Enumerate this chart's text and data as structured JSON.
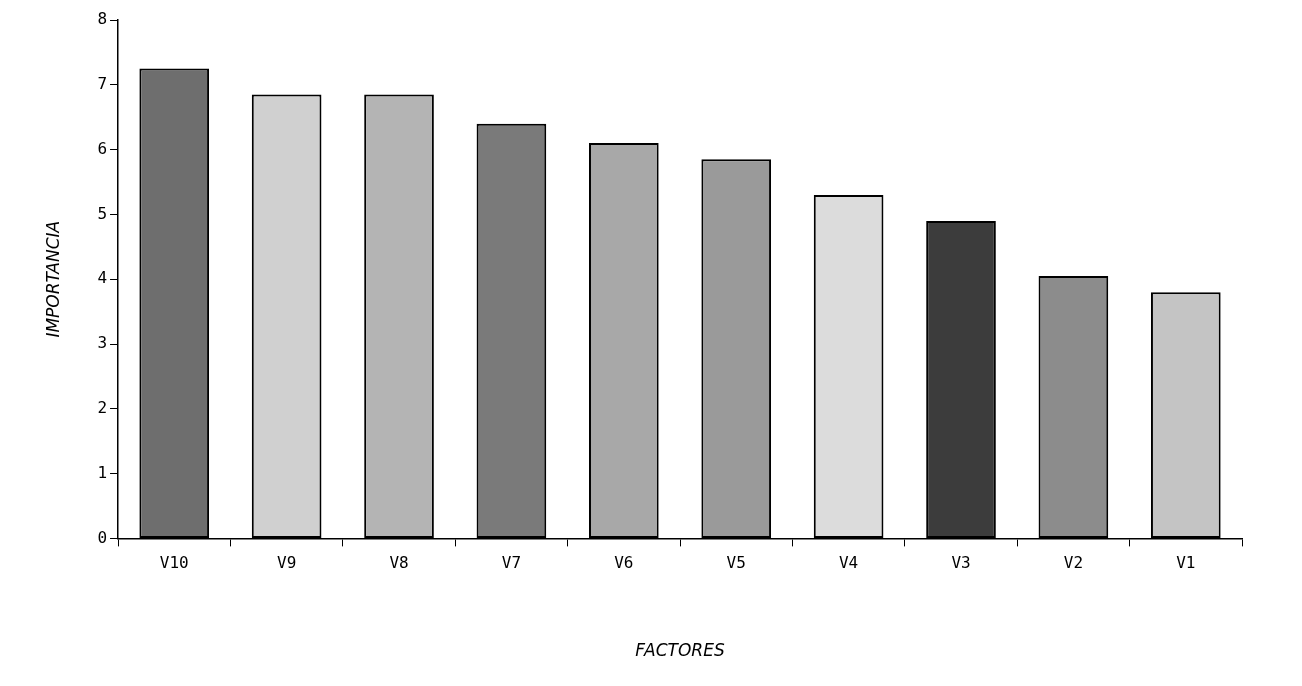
{
  "chart_data": {
    "type": "bar",
    "categories": [
      "V10",
      "V9",
      "V8",
      "V7",
      "V6",
      "V5",
      "V4",
      "V3",
      "V2",
      "V1"
    ],
    "values": [
      7.25,
      6.85,
      6.85,
      6.4,
      6.1,
      5.85,
      5.3,
      4.9,
      4.05,
      3.8
    ],
    "colors": [
      "#6e6e6e",
      "#d0d0d0",
      "#b4b4b4",
      "#7a7a7a",
      "#a8a8a8",
      "#9a9a9a",
      "#dcdcdc",
      "#3c3c3c",
      "#8c8c8c",
      "#c4c4c4"
    ],
    "xlabel": "FACTORES",
    "ylabel": "IMPORTANCIA",
    "ylim": [
      0,
      8
    ],
    "yticks": [
      0,
      1,
      2,
      3,
      4,
      5,
      6,
      7,
      8
    ],
    "grid": false,
    "legend": false
  }
}
